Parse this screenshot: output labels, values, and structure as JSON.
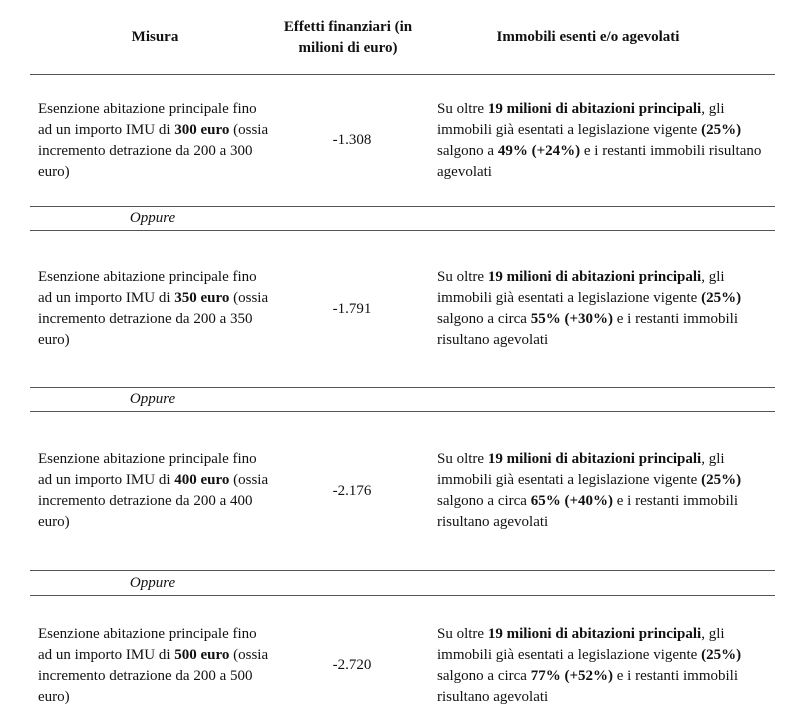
{
  "table": {
    "headers": [
      "Misura",
      "Effetti finanziari (in milioni di euro)",
      "Immobili esenti e/o agevolati"
    ],
    "rows": [
      {
        "measure": [
          {
            "text": "Esenzione abitazione principale fino ad un importo IMU di "
          },
          {
            "text": "300 euro",
            "bold": true
          },
          {
            "text": " (ossia incremento detrazione da 200 a 300 euro)"
          }
        ],
        "effect": "-1.308",
        "exempt": [
          {
            "text": "Su oltre "
          },
          {
            "text": "19 milioni di abitazioni principali",
            "bold": true
          },
          {
            "text": ", gli immobili già esentati a legislazione vigente "
          },
          {
            "text": "(25%)",
            "bold": true
          },
          {
            "text": " salgono a "
          },
          {
            "text": "49% (+24%)",
            "bold": true
          },
          {
            "text": " e i restanti immobili risultano agevolati"
          }
        ]
      },
      {
        "separator": "Oppure"
      },
      {
        "measure": [
          {
            "text": "Esenzione abitazione principale fino ad un importo IMU di "
          },
          {
            "text": "350 euro",
            "bold": true
          },
          {
            "text": " (ossia incremento detrazione da 200 a 350 euro)"
          }
        ],
        "effect": "-1.791",
        "exempt": [
          {
            "text": "Su oltre "
          },
          {
            "text": "19 milioni di abitazioni principali",
            "bold": true
          },
          {
            "text": ", gli immobili già esentati a legislazione vigente "
          },
          {
            "text": "(25%)",
            "bold": true
          },
          {
            "text": " salgono a circa "
          },
          {
            "text": "55% (+30%)",
            "bold": true
          },
          {
            "text": " e i restanti immobili risultano agevolati"
          }
        ]
      },
      {
        "separator": "Oppure"
      },
      {
        "measure": [
          {
            "text": "Esenzione abitazione principale fino ad un importo IMU di "
          },
          {
            "text": "400 euro",
            "bold": true
          },
          {
            "text": " (ossia incremento detrazione da 200 a 400 euro)"
          }
        ],
        "effect": "-2.176",
        "exempt": [
          {
            "text": "Su oltre "
          },
          {
            "text": "19 milioni di abitazioni principali",
            "bold": true
          },
          {
            "text": ", gli immobili già esentati a legislazione vigente "
          },
          {
            "text": "(25%)",
            "bold": true
          },
          {
            "text": " salgono a circa "
          },
          {
            "text": "65% (+40%)",
            "bold": true
          },
          {
            "text": " e i restanti immobili risultano agevolati"
          }
        ]
      },
      {
        "separator": "Oppure"
      },
      {
        "measure": [
          {
            "text": "Esenzione abitazione principale fino ad un importo IMU di "
          },
          {
            "text": "500 euro",
            "bold": true
          },
          {
            "text": " (ossia incremento detrazione da 200 a 500 euro)"
          }
        ],
        "effect": "-2.720",
        "exempt": [
          {
            "text": "Su oltre "
          },
          {
            "text": "19 milioni di abitazioni principali",
            "bold": true
          },
          {
            "text": ", gli immobili già esentati a legislazione vigente "
          },
          {
            "text": "(25%)",
            "bold": true
          },
          {
            "text": " salgono a circa "
          },
          {
            "text": "77% (+52%)",
            "bold": true
          },
          {
            "text": " e i restanti immobili risultano agevolati"
          }
        ]
      }
    ]
  }
}
